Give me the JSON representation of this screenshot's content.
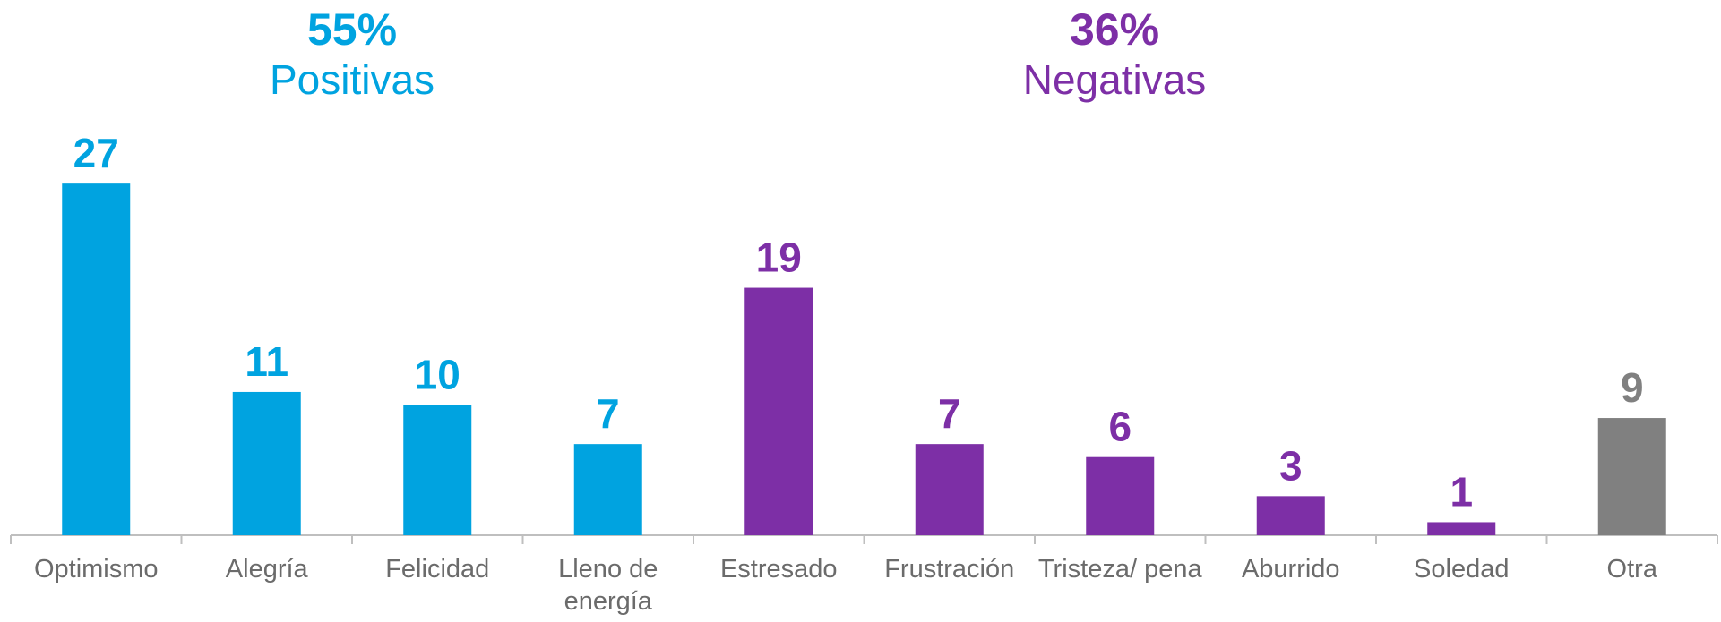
{
  "chart_data": {
    "type": "bar",
    "groups": [
      {
        "title": "55%",
        "subtitle": "Positivas",
        "color": "#00a3e0"
      },
      {
        "title": "36%",
        "subtitle": "Negativas",
        "color": "#7d2fa6"
      }
    ],
    "categories": [
      "Optimismo",
      "Alegría",
      "Felicidad",
      "Lleno de energía",
      "Estresado",
      "Frustración",
      "Tristeza/ pena",
      "Aburrido",
      "Soledad",
      "Otra"
    ],
    "values": [
      27,
      11,
      10,
      7,
      19,
      7,
      6,
      3,
      1,
      9
    ],
    "colors": [
      "#00a3e0",
      "#00a3e0",
      "#00a3e0",
      "#00a3e0",
      "#7d2fa6",
      "#7d2fa6",
      "#7d2fa6",
      "#7d2fa6",
      "#7d2fa6",
      "#808080"
    ]
  }
}
